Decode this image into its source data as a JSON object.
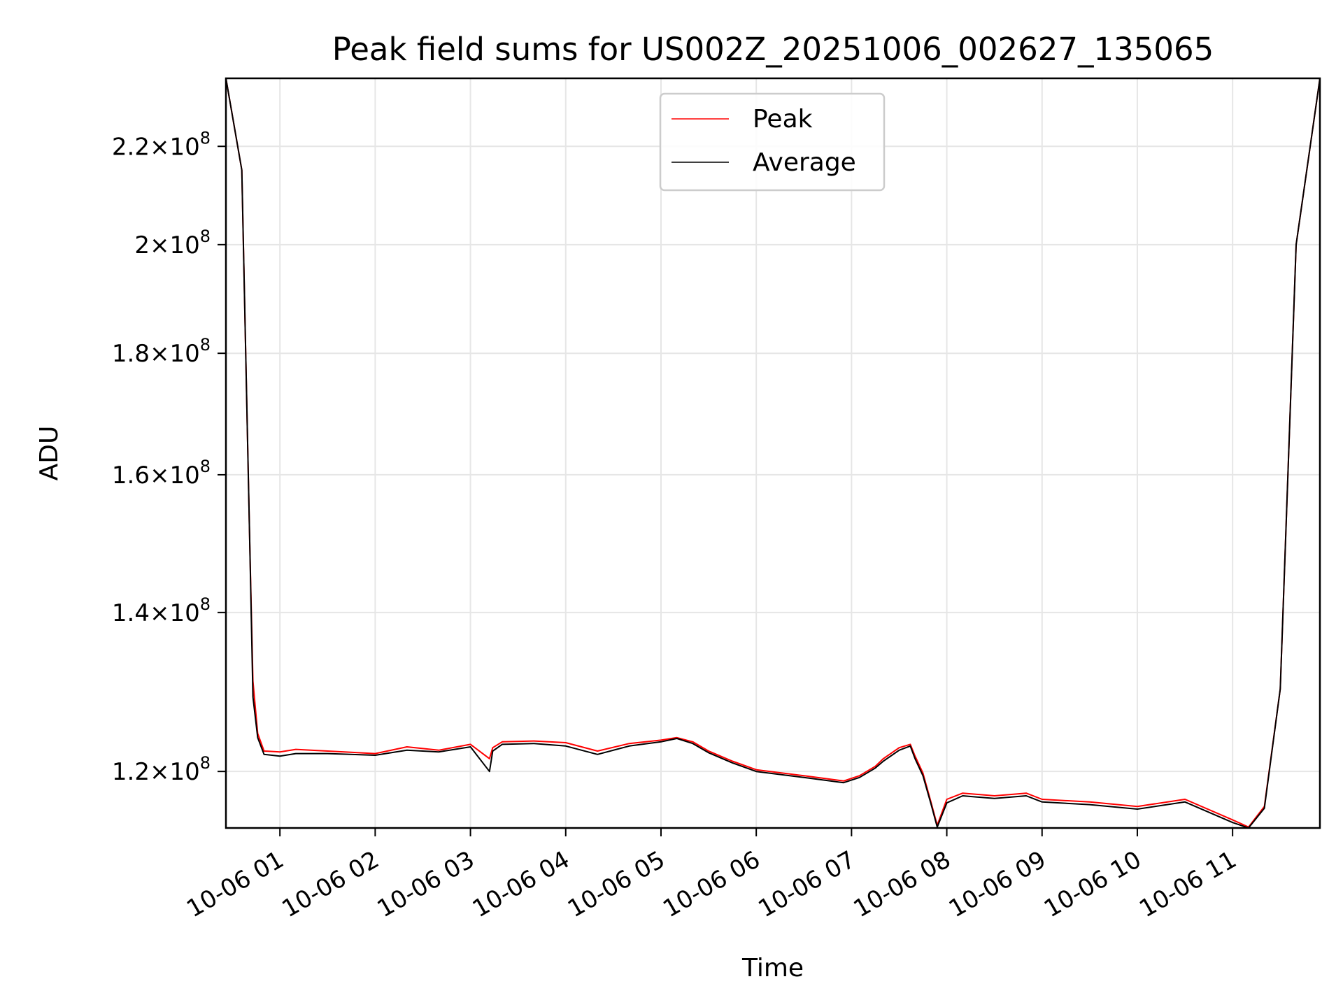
{
  "chart_data": {
    "type": "line",
    "title": "Peak field sums for US002Z_20251006_002627_135065",
    "xlabel": "Time",
    "ylabel": "ADU",
    "y_scale": "log",
    "grid": true,
    "legend_position": "top-center",
    "x_tick_labels": [
      "10-06 01",
      "10-06 02",
      "10-06 03",
      "10-06 04",
      "10-06 05",
      "10-06 06",
      "10-06 07",
      "10-06 08",
      "10-06 09",
      "10-06 10",
      "10-06 11"
    ],
    "x_tick_values": [
      "2025-10-06 01:00",
      "2025-10-06 02:00",
      "2025-10-06 03:00",
      "2025-10-06 04:00",
      "2025-10-06 05:00",
      "2025-10-06 06:00",
      "2025-10-06 07:00",
      "2025-10-06 08:00",
      "2025-10-06 09:00",
      "2025-10-06 10:00",
      "2025-10-06 11:00"
    ],
    "xlim": [
      "2025-10-06 00:26",
      "2025-10-06 11:55"
    ],
    "y_ticks": [
      {
        "value": 120000000,
        "mantissa": "1.2",
        "exp": "8"
      },
      {
        "value": 140000000,
        "mantissa": "1.4",
        "exp": "8"
      },
      {
        "value": 160000000,
        "mantissa": "1.6",
        "exp": "8"
      },
      {
        "value": 180000000,
        "mantissa": "1.8",
        "exp": "8"
      },
      {
        "value": 200000000,
        "mantissa": "2",
        "exp": "8"
      },
      {
        "value": 220000000,
        "mantissa": "2.2",
        "exp": "8"
      }
    ],
    "ylim": [
      113600000,
      235000000
    ],
    "series": [
      {
        "name": "Peak",
        "color": "#ff0000",
        "x": [
          "2025-10-06 00:26",
          "2025-10-06 00:36",
          "2025-10-06 00:41",
          "2025-10-06 00:43",
          "2025-10-06 00:46",
          "2025-10-06 00:50",
          "2025-10-06 01:00",
          "2025-10-06 01:10",
          "2025-10-06 01:30",
          "2025-10-06 02:00",
          "2025-10-06 02:20",
          "2025-10-06 02:40",
          "2025-10-06 03:00",
          "2025-10-06 03:12",
          "2025-10-06 03:14",
          "2025-10-06 03:20",
          "2025-10-06 03:40",
          "2025-10-06 04:00",
          "2025-10-06 04:20",
          "2025-10-06 04:40",
          "2025-10-06 05:00",
          "2025-10-06 05:10",
          "2025-10-06 05:20",
          "2025-10-06 05:30",
          "2025-10-06 05:45",
          "2025-10-06 06:00",
          "2025-10-06 06:30",
          "2025-10-06 06:55",
          "2025-10-06 07:05",
          "2025-10-06 07:15",
          "2025-10-06 07:20",
          "2025-10-06 07:30",
          "2025-10-06 07:37",
          "2025-10-06 07:40",
          "2025-10-06 07:45",
          "2025-10-06 07:50",
          "2025-10-06 07:54",
          "2025-10-06 08:00",
          "2025-10-06 08:10",
          "2025-10-06 08:30",
          "2025-10-06 08:50",
          "2025-10-06 09:00",
          "2025-10-06 09:30",
          "2025-10-06 10:00",
          "2025-10-06 10:30",
          "2025-10-06 11:00",
          "2025-10-06 11:10",
          "2025-10-06 11:20",
          "2025-10-06 11:30",
          "2025-10-06 11:40",
          "2025-10-06 11:55"
        ],
        "y": [
          235000000,
          215000000,
          150000000,
          131000000,
          124500000,
          122400000,
          122300000,
          122600000,
          122400000,
          122100000,
          122900000,
          122500000,
          123200000,
          121500000,
          122800000,
          123500000,
          123600000,
          123400000,
          122400000,
          123300000,
          123700000,
          124000000,
          123500000,
          122400000,
          121200000,
          120200000,
          119500000,
          118900000,
          119500000,
          120600000,
          121500000,
          122800000,
          123200000,
          121800000,
          119800000,
          116500000,
          113900000,
          116800000,
          117500000,
          117200000,
          117500000,
          116800000,
          116500000,
          116000000,
          116800000,
          114500000,
          113700000,
          116000000,
          130000000,
          200000000,
          235000000
        ]
      },
      {
        "name": "Average",
        "color": "#000000",
        "x": [
          "2025-10-06 00:26",
          "2025-10-06 00:36",
          "2025-10-06 00:41",
          "2025-10-06 00:43",
          "2025-10-06 00:46",
          "2025-10-06 00:50",
          "2025-10-06 01:00",
          "2025-10-06 01:10",
          "2025-10-06 01:30",
          "2025-10-06 02:00",
          "2025-10-06 02:20",
          "2025-10-06 02:40",
          "2025-10-06 03:00",
          "2025-10-06 03:12",
          "2025-10-06 03:14",
          "2025-10-06 03:20",
          "2025-10-06 03:40",
          "2025-10-06 04:00",
          "2025-10-06 04:20",
          "2025-10-06 04:40",
          "2025-10-06 05:00",
          "2025-10-06 05:10",
          "2025-10-06 05:20",
          "2025-10-06 05:30",
          "2025-10-06 05:45",
          "2025-10-06 06:00",
          "2025-10-06 06:30",
          "2025-10-06 06:55",
          "2025-10-06 07:05",
          "2025-10-06 07:15",
          "2025-10-06 07:20",
          "2025-10-06 07:30",
          "2025-10-06 07:37",
          "2025-10-06 07:40",
          "2025-10-06 07:45",
          "2025-10-06 07:50",
          "2025-10-06 07:54",
          "2025-10-06 08:00",
          "2025-10-06 08:10",
          "2025-10-06 08:30",
          "2025-10-06 08:50",
          "2025-10-06 09:00",
          "2025-10-06 09:30",
          "2025-10-06 10:00",
          "2025-10-06 10:30",
          "2025-10-06 11:00",
          "2025-10-06 11:10",
          "2025-10-06 11:20",
          "2025-10-06 11:30",
          "2025-10-06 11:40",
          "2025-10-06 11:55"
        ],
        "y": [
          235000000,
          215000000,
          150000000,
          129000000,
          124000000,
          122000000,
          121800000,
          122100000,
          122100000,
          121900000,
          122500000,
          122300000,
          122900000,
          120000000,
          122400000,
          123200000,
          123300000,
          123000000,
          122000000,
          123000000,
          123500000,
          123900000,
          123300000,
          122200000,
          121000000,
          120000000,
          119300000,
          118700000,
          119300000,
          120400000,
          121200000,
          122500000,
          123000000,
          121500000,
          119500000,
          116300000,
          113700000,
          116400000,
          117200000,
          116900000,
          117200000,
          116500000,
          116200000,
          115700000,
          116500000,
          114200000,
          113600000,
          115800000,
          130000000,
          200000000,
          235000000
        ]
      }
    ]
  }
}
